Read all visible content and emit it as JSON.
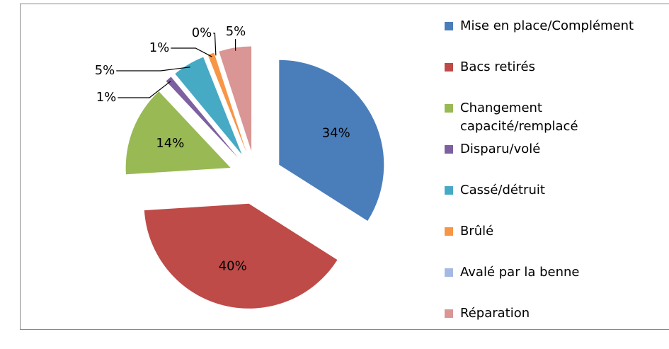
{
  "chart_data": {
    "type": "pie",
    "categories": [
      "Mise en place/Complément",
      "Bacs retirés",
      "Changement capacité/remplacé",
      "Disparu/volé",
      "Cassé/détruit",
      "Brûlé",
      "Avalé par la benne",
      "Réparation"
    ],
    "values": [
      34,
      40,
      14,
      1,
      5,
      1,
      0,
      5
    ],
    "value_labels": [
      "34%",
      "40%",
      "14%",
      "1%",
      "5%",
      "1%",
      "0%",
      "5%"
    ],
    "colors": [
      "#4a7ebb",
      "#be4b48",
      "#98b954",
      "#7d60a0",
      "#46aac5",
      "#f79646",
      "#a5b9e3",
      "#d99694"
    ],
    "legend": "right"
  }
}
